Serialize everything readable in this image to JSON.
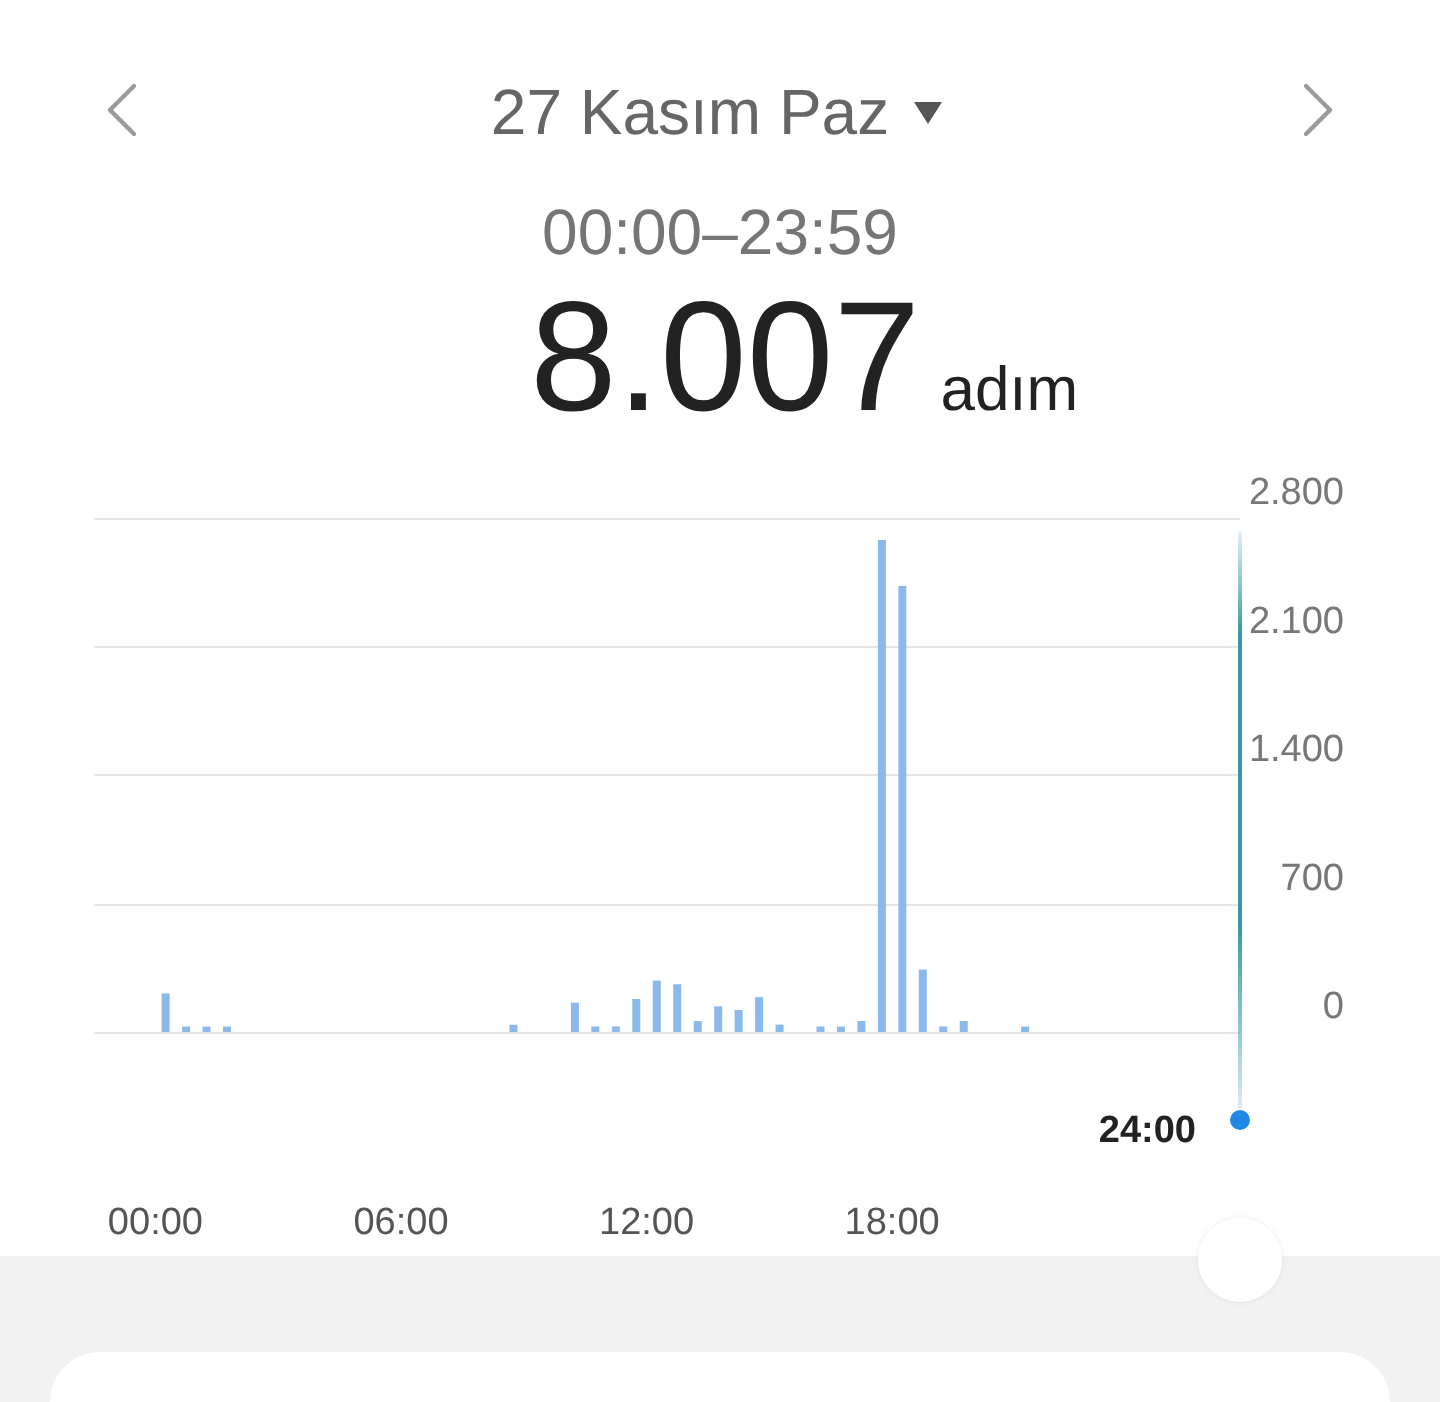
{
  "chart_data": {
    "type": "bar",
    "title": "27 Kasım Paz",
    "subtitle": "00:00–23:59",
    "annotations": [
      "8.007",
      "adım",
      "24:00"
    ],
    "x": [
      0.25,
      0.75,
      1.25,
      1.75,
      8.75,
      10.25,
      10.75,
      11.25,
      11.75,
      12.25,
      12.75,
      13.25,
      13.75,
      14.25,
      14.75,
      15.25,
      16.25,
      16.75,
      17.25,
      17.75,
      18.25,
      18.75,
      19.25,
      19.75,
      21.25
    ],
    "values": [
      210,
      30,
      30,
      30,
      40,
      160,
      30,
      30,
      180,
      280,
      260,
      60,
      140,
      120,
      190,
      40,
      30,
      30,
      60,
      2680,
      2430,
      340,
      30,
      60,
      30
    ],
    "color": "#8bb9ec",
    "xlim": [
      -1.5,
      26.5
    ],
    "xticks": [
      {
        "value": 0,
        "label": "00:00"
      },
      {
        "value": 6,
        "label": "06:00"
      },
      {
        "value": 12,
        "label": "12:00"
      },
      {
        "value": 18,
        "label": "18:00"
      }
    ],
    "ylim": [
      0,
      2800
    ],
    "yticks": [
      0,
      700,
      {
        "value": 1400,
        "label": "1.400"
      },
      {
        "value": 2100,
        "label": "2.100"
      },
      {
        "value": 2800,
        "label": "2.800"
      }
    ],
    "grid": "y"
  }
}
